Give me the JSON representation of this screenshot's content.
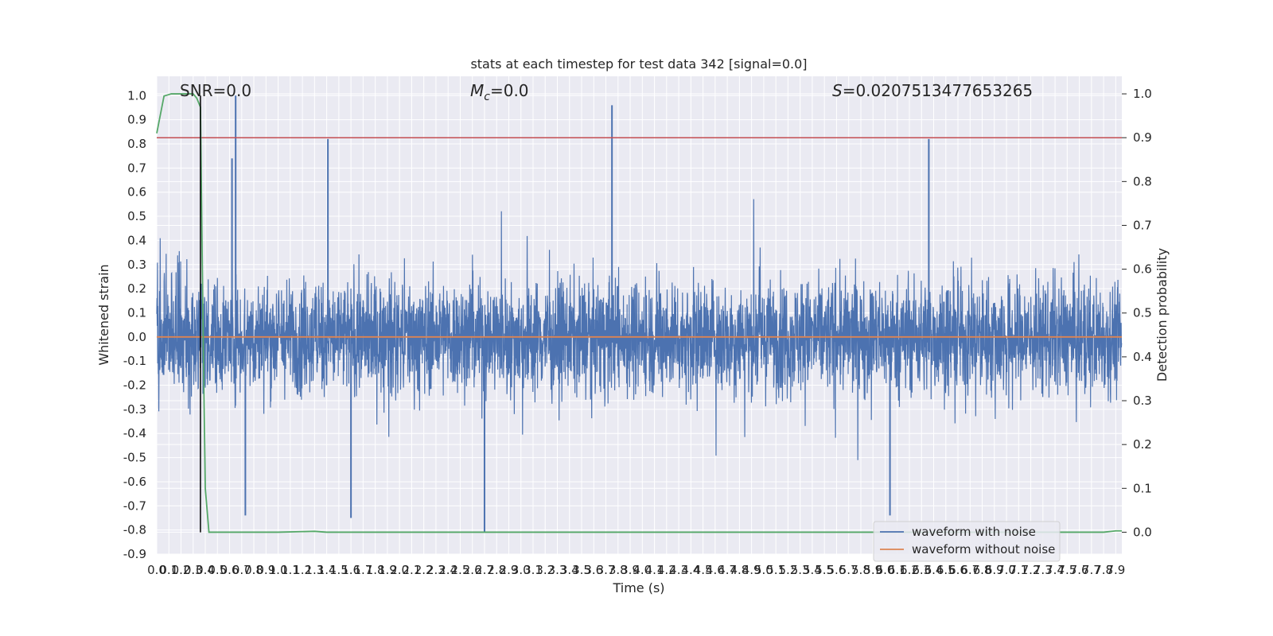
{
  "chart_data": {
    "type": "line",
    "title": "stats at each timestep for test data 342 [signal=0.0]",
    "xlabel": "Time (s)",
    "ylabel": "Whitened strain",
    "y2label": "Detection probability",
    "xlim": [
      0.0,
      7.95
    ],
    "ylim": [
      -0.9,
      1.08
    ],
    "y2lim": [
      -0.05,
      1.04
    ],
    "x_tick_step": 0.1,
    "x_ticks_max": 7.9,
    "y_ticks": [
      1.0,
      0.9,
      0.8,
      0.7,
      0.6,
      0.5,
      0.4,
      0.3,
      0.2,
      0.1,
      0.0,
      -0.1,
      -0.2,
      -0.3,
      -0.4,
      -0.5,
      -0.6,
      -0.7,
      -0.8,
      -0.9
    ],
    "y2_ticks": [
      1.0,
      0.9,
      0.8,
      0.7,
      0.6,
      0.5,
      0.4,
      0.3,
      0.2,
      0.1,
      0.0
    ],
    "grid": true,
    "legend_position": "bottom-right",
    "annotations": {
      "snr": "SNR=0.0",
      "mc_symbol": "M",
      "mc_sub": "c",
      "mc_value": "=0.0",
      "s_symbol": "S",
      "s_value": "=0.0207513477653265"
    },
    "series": [
      {
        "name": "waveform with noise",
        "color": "#4c72b0",
        "description_amplitude": {
          "typical_upper": 0.45,
          "typical_lower": -0.45,
          "max": 1.0,
          "min": -0.81
        },
        "peaks": [
          [
            0.65,
            1.0
          ],
          [
            1.41,
            0.82
          ],
          [
            3.75,
            0.96
          ],
          [
            6.36,
            0.82
          ],
          [
            0.62,
            0.74
          ],
          [
            2.7,
            -0.81
          ],
          [
            0.73,
            -0.74
          ],
          [
            6.04,
            -0.74
          ],
          [
            1.6,
            -0.75
          ]
        ]
      },
      {
        "name": "waveform without noise",
        "color": "#dd8452",
        "x": [
          0.0,
          7.95
        ],
        "y": [
          0.0,
          0.0
        ]
      },
      {
        "name": "detection probability",
        "color": "#55a868",
        "axis": "right",
        "x": [
          0.0,
          0.06,
          0.12,
          0.2,
          0.3,
          0.33,
          0.36,
          0.38,
          0.4,
          0.43,
          1.0,
          1.3,
          1.4,
          2.0,
          4.0,
          6.0,
          7.0,
          7.8,
          7.9,
          7.95
        ],
        "y": [
          0.91,
          0.995,
          1.0,
          1.0,
          1.0,
          0.99,
          0.97,
          0.5,
          0.1,
          0.0,
          0.0,
          0.002,
          0.0,
          0.0,
          0.0,
          0.0,
          0.0,
          0.0,
          0.003,
          0.003
        ]
      }
    ],
    "threshold_line": {
      "value": 0.9,
      "axis": "right",
      "color": "#c44e52"
    },
    "marker_line": {
      "x": 0.36,
      "y_from": -0.81,
      "y_to": 1.0,
      "color": "#000000"
    }
  }
}
